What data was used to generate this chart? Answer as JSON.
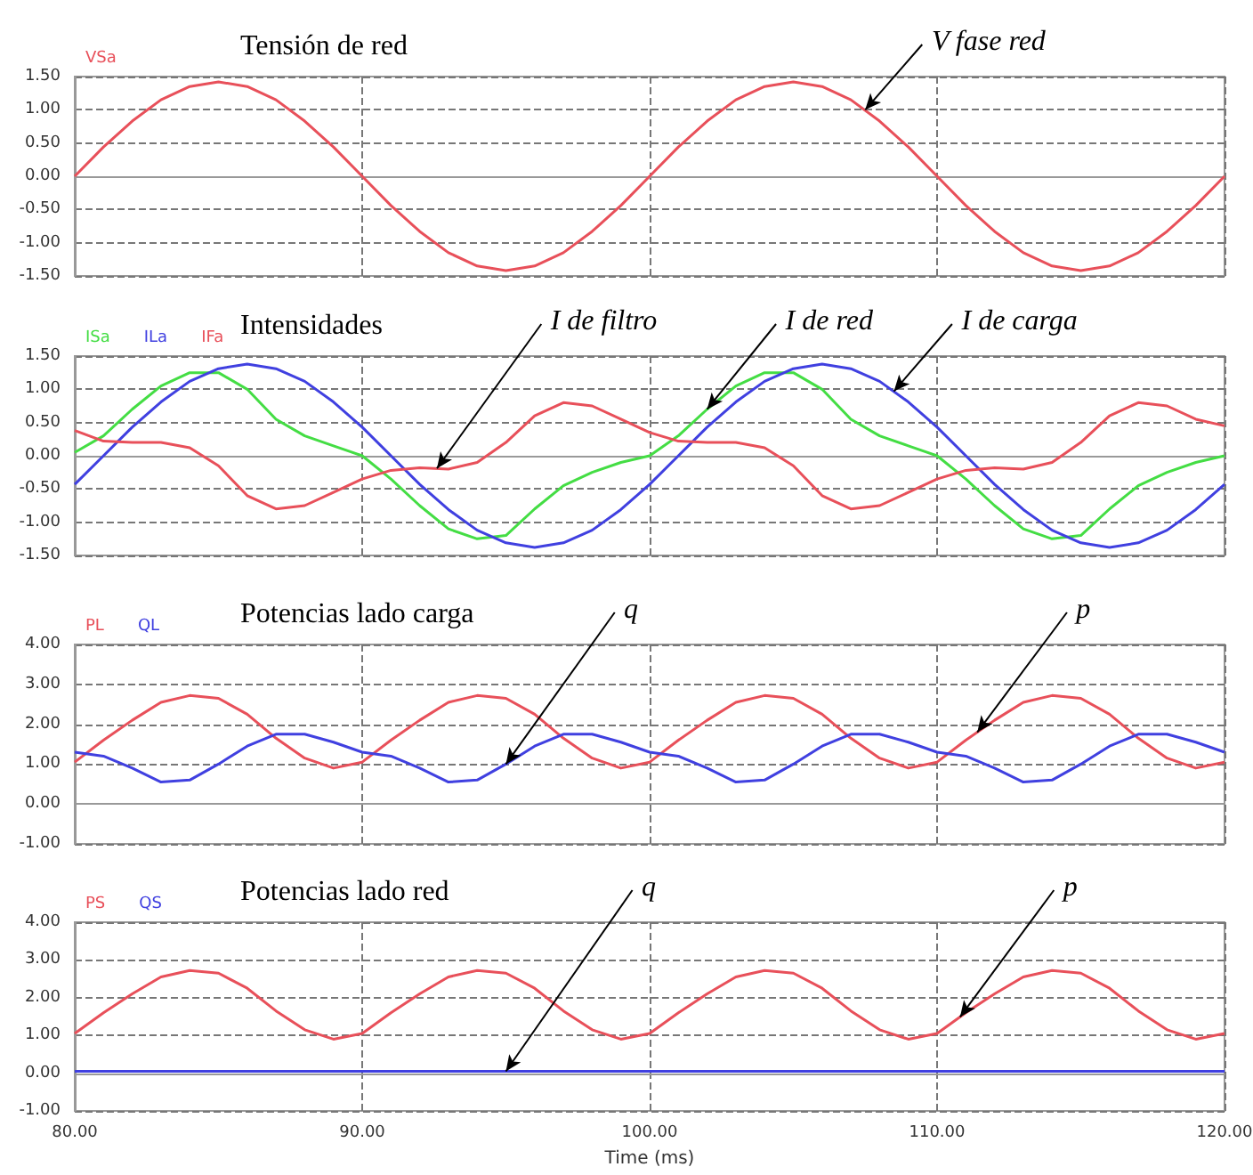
{
  "chart_data": [
    {
      "type": "line",
      "title": "Tensión de red",
      "legend": "top left",
      "grid": true,
      "tick_labels": "y",
      "xlim": [
        80,
        120
      ],
      "xticks": [
        80,
        90,
        100,
        110,
        120
      ],
      "ylim": [
        -1.5,
        1.5
      ],
      "yticks": [
        {
          "value": -1.5,
          "label": "-1.50"
        },
        {
          "value": -1,
          "label": "-1.00"
        },
        {
          "value": -0.5,
          "label": "-0.50"
        },
        {
          "value": 0,
          "label": "0.00"
        },
        {
          "value": 0.5,
          "label": "0.50"
        },
        {
          "value": 1,
          "label": "1.00"
        },
        {
          "value": 1.5,
          "label": "1.50"
        }
      ],
      "x": [
        80,
        81,
        82,
        83,
        84,
        85,
        86,
        87,
        88,
        89,
        90,
        91,
        92,
        93,
        94,
        95,
        96,
        97,
        98,
        99,
        100,
        101,
        102,
        103,
        104,
        105,
        106,
        107,
        108,
        109,
        110,
        111,
        112,
        113,
        114,
        115,
        116,
        117,
        118,
        119,
        120
      ],
      "series": [
        {
          "name": "VSa",
          "color": "#e8505a",
          "values": [
            0,
            0.44,
            0.83,
            1.15,
            1.35,
            1.42,
            1.35,
            1.15,
            0.83,
            0.44,
            0,
            -0.44,
            -0.83,
            -1.15,
            -1.35,
            -1.42,
            -1.35,
            -1.15,
            -0.83,
            -0.44,
            0,
            0.44,
            0.83,
            1.15,
            1.35,
            1.42,
            1.35,
            1.15,
            0.83,
            0.44,
            0,
            -0.44,
            -0.83,
            -1.15,
            -1.35,
            -1.42,
            -1.35,
            -1.15,
            -0.83,
            -0.44,
            0
          ]
        }
      ],
      "annotations": [
        {
          "text": "V fase red",
          "x": 107.5,
          "y": 1.0
        }
      ]
    },
    {
      "type": "line",
      "title": "Intensidades",
      "legend": "top left",
      "grid": true,
      "tick_labels": "y",
      "xlim": [
        80,
        120
      ],
      "xticks": [
        80,
        90,
        100,
        110,
        120
      ],
      "ylim": [
        -1.5,
        1.5
      ],
      "yticks": [
        {
          "value": -1.5,
          "label": "-1.50"
        },
        {
          "value": -1,
          "label": "-1.00"
        },
        {
          "value": -0.5,
          "label": "-0.50"
        },
        {
          "value": 0,
          "label": "0.00"
        },
        {
          "value": 0.5,
          "label": "0.50"
        },
        {
          "value": 1,
          "label": "1.00"
        },
        {
          "value": 1.5,
          "label": "1.50"
        }
      ],
      "x": [
        80,
        81,
        82,
        83,
        84,
        85,
        86,
        87,
        88,
        89,
        90,
        91,
        92,
        93,
        94,
        95,
        96,
        97,
        98,
        99,
        100,
        101,
        102,
        103,
        104,
        105,
        106,
        107,
        108,
        109,
        110,
        111,
        112,
        113,
        114,
        115,
        116,
        117,
        118,
        119,
        120
      ],
      "series": [
        {
          "name": "ISa",
          "color": "#44dd44",
          "values": [
            0.05,
            0.3,
            0.7,
            1.05,
            1.25,
            1.25,
            1.0,
            0.55,
            0.3,
            0.15,
            0,
            -0.35,
            -0.75,
            -1.1,
            -1.25,
            -1.2,
            -0.8,
            -0.45,
            -0.25,
            -0.1,
            0,
            0.3,
            0.7,
            1.05,
            1.25,
            1.25,
            1.0,
            0.55,
            0.3,
            0.15,
            0,
            -0.35,
            -0.75,
            -1.1,
            -1.25,
            -1.2,
            -0.8,
            -0.45,
            -0.25,
            -0.1,
            0
          ]
        },
        {
          "name": "ILa",
          "color": "#4040e0",
          "values": [
            -0.43,
            0,
            0.43,
            0.81,
            1.12,
            1.31,
            1.38,
            1.31,
            1.12,
            0.81,
            0.43,
            0,
            -0.43,
            -0.81,
            -1.12,
            -1.31,
            -1.38,
            -1.31,
            -1.12,
            -0.81,
            -0.43,
            0,
            0.43,
            0.81,
            1.12,
            1.31,
            1.38,
            1.31,
            1.12,
            0.81,
            0.43,
            0,
            -0.43,
            -0.81,
            -1.12,
            -1.31,
            -1.38,
            -1.31,
            -1.12,
            -0.81,
            -0.43
          ]
        },
        {
          "name": "IFa",
          "color": "#e8505a",
          "values": [
            0.38,
            0.22,
            0.2,
            0.2,
            0.12,
            -0.15,
            -0.6,
            -0.8,
            -0.75,
            -0.55,
            -0.35,
            -0.22,
            -0.18,
            -0.2,
            -0.1,
            0.2,
            0.6,
            0.8,
            0.75,
            0.55,
            0.35,
            0.22,
            0.2,
            0.2,
            0.12,
            -0.15,
            -0.6,
            -0.8,
            -0.75,
            -0.55,
            -0.35,
            -0.22,
            -0.18,
            -0.2,
            -0.1,
            0.2,
            0.6,
            0.8,
            0.75,
            0.55,
            0.45
          ]
        }
      ],
      "annotations": [
        {
          "text": "I de filtro",
          "x": 92.6,
          "y": -0.19
        },
        {
          "text": "I de red",
          "x": 102,
          "y": 0.7
        },
        {
          "text": "I de carga",
          "x": 108.5,
          "y": 0.97
        }
      ]
    },
    {
      "type": "line",
      "title": "Potencias lado carga",
      "legend": "top left",
      "grid": true,
      "tick_labels": "y",
      "xlim": [
        80,
        120
      ],
      "xticks": [
        80,
        90,
        100,
        110,
        120
      ],
      "ylim": [
        -1,
        4
      ],
      "yticks": [
        {
          "value": -1,
          "label": "-1.00"
        },
        {
          "value": 0,
          "label": "0.00"
        },
        {
          "value": 1,
          "label": "1.00"
        },
        {
          "value": 2,
          "label": "2.00"
        },
        {
          "value": 3,
          "label": "3.00"
        },
        {
          "value": 4,
          "label": "4.00"
        }
      ],
      "x": [
        80,
        81,
        82,
        83,
        84,
        85,
        86,
        87,
        88,
        89,
        90,
        91,
        92,
        93,
        94,
        95,
        96,
        97,
        98,
        99,
        100,
        101,
        102,
        103,
        104,
        105,
        106,
        107,
        108,
        109,
        110,
        111,
        112,
        113,
        114,
        115,
        116,
        117,
        118,
        119,
        120
      ],
      "series": [
        {
          "name": "PL",
          "color": "#e8505a",
          "values": [
            1.05,
            1.6,
            2.1,
            2.55,
            2.72,
            2.65,
            2.25,
            1.65,
            1.15,
            0.9,
            1.05,
            1.6,
            2.1,
            2.55,
            2.72,
            2.65,
            2.25,
            1.65,
            1.15,
            0.9,
            1.05,
            1.6,
            2.1,
            2.55,
            2.72,
            2.65,
            2.25,
            1.65,
            1.15,
            0.9,
            1.05,
            1.6,
            2.1,
            2.55,
            2.72,
            2.65,
            2.25,
            1.65,
            1.15,
            0.9,
            1.05
          ]
        },
        {
          "name": "QL",
          "color": "#4040e0",
          "values": [
            1.3,
            1.2,
            0.9,
            0.55,
            0.6,
            1.0,
            1.45,
            1.75,
            1.75,
            1.55,
            1.3,
            1.2,
            0.9,
            0.55,
            0.6,
            1.0,
            1.45,
            1.75,
            1.75,
            1.55,
            1.3,
            1.2,
            0.9,
            0.55,
            0.6,
            1.0,
            1.45,
            1.75,
            1.75,
            1.55,
            1.3,
            1.2,
            0.9,
            0.55,
            0.6,
            1.0,
            1.45,
            1.75,
            1.75,
            1.55,
            1.3
          ]
        }
      ],
      "annotations": [
        {
          "text": "q",
          "x": 95,
          "y": 1.0
        },
        {
          "text": "p",
          "x": 111.4,
          "y": 1.8
        }
      ]
    },
    {
      "type": "line",
      "title": "Potencias lado red",
      "xlabel": "Time (ms)",
      "legend": "top left",
      "grid": true,
      "xlim": [
        80,
        120
      ],
      "xticks": [
        {
          "value": 80,
          "label": "80.00"
        },
        {
          "value": 90,
          "label": "90.00"
        },
        {
          "value": 100,
          "label": "100.00"
        },
        {
          "value": 110,
          "label": "110.00"
        },
        {
          "value": 120,
          "label": "120.00"
        }
      ],
      "ylim": [
        -1,
        4
      ],
      "yticks": [
        {
          "value": -1,
          "label": "-1.00"
        },
        {
          "value": 0,
          "label": "0.00"
        },
        {
          "value": 1,
          "label": "1.00"
        },
        {
          "value": 2,
          "label": "2.00"
        },
        {
          "value": 3,
          "label": "3.00"
        },
        {
          "value": 4,
          "label": "4.00"
        }
      ],
      "x": [
        80,
        81,
        82,
        83,
        84,
        85,
        86,
        87,
        88,
        89,
        90,
        91,
        92,
        93,
        94,
        95,
        96,
        97,
        98,
        99,
        100,
        101,
        102,
        103,
        104,
        105,
        106,
        107,
        108,
        109,
        110,
        111,
        112,
        113,
        114,
        115,
        116,
        117,
        118,
        119,
        120
      ],
      "series": [
        {
          "name": "PS",
          "color": "#e8505a",
          "values": [
            1.05,
            1.6,
            2.1,
            2.55,
            2.72,
            2.65,
            2.25,
            1.65,
            1.15,
            0.9,
            1.05,
            1.6,
            2.1,
            2.55,
            2.72,
            2.65,
            2.25,
            1.65,
            1.15,
            0.9,
            1.05,
            1.6,
            2.1,
            2.55,
            2.72,
            2.65,
            2.25,
            1.65,
            1.15,
            0.9,
            1.05,
            1.6,
            2.1,
            2.55,
            2.72,
            2.65,
            2.25,
            1.65,
            1.15,
            0.9,
            1.05
          ]
        },
        {
          "name": "QS",
          "color": "#4040e0",
          "values": [
            0.05,
            0.05,
            0.05,
            0.05,
            0.05,
            0.05,
            0.05,
            0.05,
            0.05,
            0.05,
            0.05,
            0.05,
            0.05,
            0.05,
            0.05,
            0.05,
            0.05,
            0.05,
            0.05,
            0.05,
            0.05,
            0.05,
            0.05,
            0.05,
            0.05,
            0.05,
            0.05,
            0.05,
            0.05,
            0.05,
            0.05,
            0.05,
            0.05,
            0.05,
            0.05,
            0.05,
            0.05,
            0.05,
            0.05,
            0.05,
            0.05
          ]
        }
      ],
      "annotations": [
        {
          "text": "q",
          "x": 95,
          "y": 0.05
        },
        {
          "text": "p",
          "x": 110.8,
          "y": 1.49
        }
      ]
    }
  ]
}
